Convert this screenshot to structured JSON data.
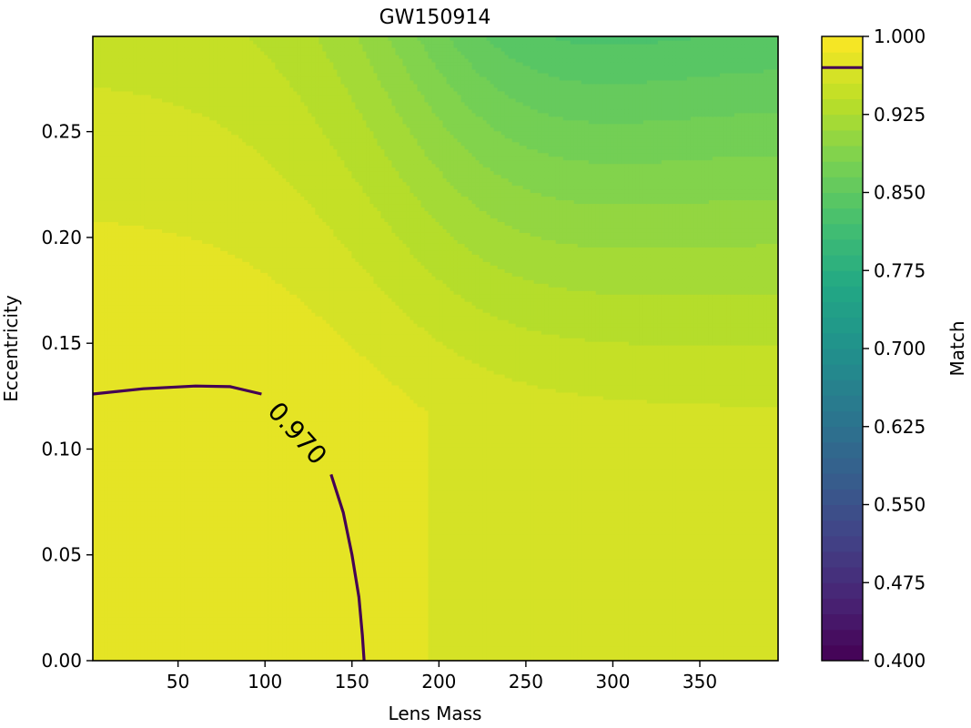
{
  "chart_data": {
    "type": "contourf",
    "title": "GW150914",
    "xlabel": "Lens Mass",
    "ylabel": "Eccentricity",
    "xlim": [
      1,
      395
    ],
    "ylim": [
      0,
      0.295
    ],
    "x_ticks": [
      {
        "value": 50,
        "label": "50"
      },
      {
        "value": 100,
        "label": "100"
      },
      {
        "value": 150,
        "label": "150"
      },
      {
        "value": 200,
        "label": "200"
      },
      {
        "value": 250,
        "label": "250"
      },
      {
        "value": 300,
        "label": "300"
      },
      {
        "value": 350,
        "label": "350"
      }
    ],
    "y_ticks": [
      {
        "value": 0.0,
        "label": "0.00"
      },
      {
        "value": 0.05,
        "label": "0.05"
      },
      {
        "value": 0.1,
        "label": "0.10"
      },
      {
        "value": 0.15,
        "label": "0.15"
      },
      {
        "value": 0.2,
        "label": "0.20"
      },
      {
        "value": 0.25,
        "label": "0.25"
      }
    ],
    "colorbar": {
      "label": "Match",
      "range": [
        0.4,
        1.0
      ],
      "levels_count": 40,
      "colormap": "viridis",
      "ticks": [
        {
          "value": 0.4,
          "label": "0.400"
        },
        {
          "value": 0.475,
          "label": "0.475"
        },
        {
          "value": 0.55,
          "label": "0.550"
        },
        {
          "value": 0.625,
          "label": "0.625"
        },
        {
          "value": 0.7,
          "label": "0.700"
        },
        {
          "value": 0.775,
          "label": "0.775"
        },
        {
          "value": 0.85,
          "label": "0.850"
        },
        {
          "value": 0.925,
          "label": "0.925"
        },
        {
          "value": 1.0,
          "label": "1.000"
        }
      ]
    },
    "contour_line": {
      "level": 0.97,
      "label": "0.970",
      "color": "#440154",
      "points": [
        [
          1,
          0.126
        ],
        [
          30,
          0.1285
        ],
        [
          60,
          0.1298
        ],
        [
          80,
          0.1295
        ],
        [
          98,
          0.126
        ],
        [
          138,
          0.088
        ],
        [
          145,
          0.07
        ],
        [
          150,
          0.05
        ],
        [
          154,
          0.03
        ],
        [
          156,
          0.012
        ],
        [
          157,
          0.0
        ]
      ]
    },
    "field": {
      "nx": 24,
      "ny": 24,
      "description": "match value field sampled over lens mass x eccentricity"
    }
  }
}
